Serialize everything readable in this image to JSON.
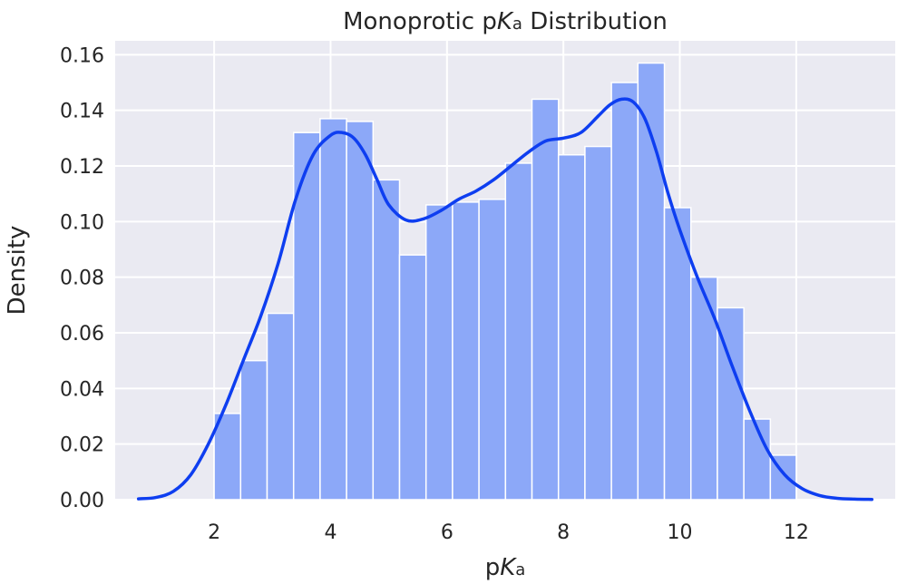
{
  "chart_data": {
    "type": "bar",
    "title": {
      "base": "Monoprotic p",
      "italic": "K",
      "sub": "a",
      "rest": " Distribution"
    },
    "xlabel": {
      "base": "p",
      "italic": "K",
      "sub": "a"
    },
    "ylabel": "Density",
    "xlim": [
      0.3,
      13.7
    ],
    "ylim": [
      0,
      0.165
    ],
    "xticks": [
      2,
      4,
      6,
      8,
      10,
      12
    ],
    "yticks": [
      0.0,
      0.02,
      0.04,
      0.06,
      0.08,
      0.1,
      0.12,
      0.14,
      0.16
    ],
    "ytick_format": 2,
    "grid": true,
    "colors": {
      "background": "#EAEAF2",
      "grid": "#FFFFFF",
      "bar": "#8CA8F8",
      "bar_edge": "#FFFFFF",
      "kde": "#0E3EF0"
    },
    "histogram": {
      "bin_edges": [
        2.0,
        2.455,
        2.91,
        3.365,
        3.82,
        4.275,
        4.73,
        5.185,
        5.64,
        6.095,
        6.55,
        7.005,
        7.46,
        7.915,
        8.37,
        8.825,
        9.28,
        9.735,
        10.19,
        10.645,
        11.1,
        11.555,
        12.0
      ],
      "values": [
        0.031,
        0.05,
        0.067,
        0.132,
        0.137,
        0.136,
        0.115,
        0.088,
        0.106,
        0.107,
        0.108,
        0.121,
        0.144,
        0.124,
        0.127,
        0.15,
        0.157,
        0.105,
        0.08,
        0.069,
        0.029,
        0.016
      ]
    },
    "kde": {
      "x": [
        0.7,
        1.0,
        1.3,
        1.6,
        1.9,
        2.2,
        2.5,
        2.8,
        3.1,
        3.4,
        3.7,
        4.0,
        4.2,
        4.4,
        4.6,
        4.8,
        5.0,
        5.3,
        5.6,
        5.9,
        6.2,
        6.5,
        6.8,
        7.1,
        7.4,
        7.7,
        8.0,
        8.3,
        8.6,
        8.8,
        9.0,
        9.2,
        9.4,
        9.6,
        9.8,
        10.0,
        10.3,
        10.6,
        10.9,
        11.2,
        11.5,
        11.8,
        12.1,
        12.4,
        12.7,
        13.0,
        13.3
      ],
      "y": [
        0.0003,
        0.0008,
        0.003,
        0.009,
        0.02,
        0.034,
        0.05,
        0.066,
        0.085,
        0.108,
        0.124,
        0.131,
        0.132,
        0.13,
        0.124,
        0.115,
        0.106,
        0.1005,
        0.101,
        0.104,
        0.108,
        0.111,
        0.115,
        0.12,
        0.125,
        0.129,
        0.13,
        0.132,
        0.138,
        0.142,
        0.144,
        0.143,
        0.137,
        0.125,
        0.11,
        0.097,
        0.08,
        0.065,
        0.048,
        0.032,
        0.018,
        0.009,
        0.004,
        0.0015,
        0.0005,
        0.0002,
        0.0001
      ]
    }
  }
}
